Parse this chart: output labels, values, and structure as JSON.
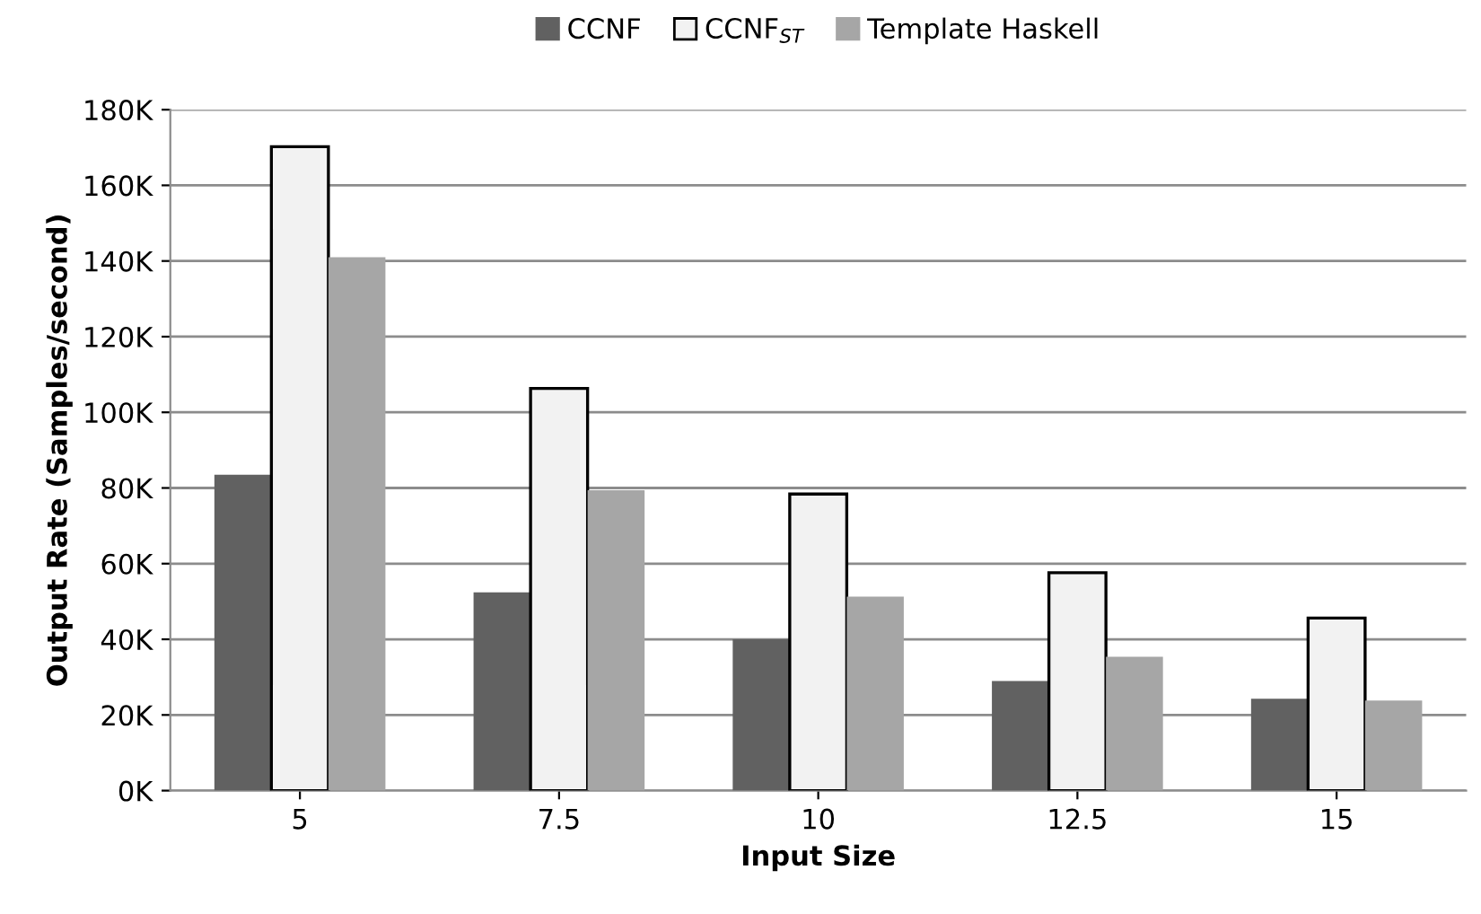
{
  "chart_data": {
    "type": "bar",
    "xlabel": "Input Size",
    "ylabel": "Output Rate (Samples/second)",
    "categories": [
      "5",
      "7.5",
      "10",
      "12.5",
      "15"
    ],
    "series": [
      {
        "name": "CCNF",
        "color": "#616161",
        "values": [
          83500,
          52400,
          40000,
          29000,
          24300
        ]
      },
      {
        "name": "CCNF$_{ST}$",
        "color": "#f2f2f2",
        "values": [
          170200,
          106300,
          78400,
          57600,
          45600
        ]
      },
      {
        "name": "Template Haskell",
        "color": "#a6a6a6",
        "values": [
          141000,
          79400,
          51300,
          35400,
          23800
        ]
      }
    ],
    "ylim": [
      0,
      180000
    ],
    "yticks": [
      {
        "value": 0,
        "label": "0K"
      },
      {
        "value": 20000,
        "label": "20K"
      },
      {
        "value": 40000,
        "label": "40K"
      },
      {
        "value": 60000,
        "label": "60K"
      },
      {
        "value": 80000,
        "label": "80K"
      },
      {
        "value": 100000,
        "label": "100K"
      },
      {
        "value": 120000,
        "label": "120K"
      },
      {
        "value": 140000,
        "label": "140K"
      },
      {
        "value": 160000,
        "label": "160K"
      },
      {
        "value": 180000,
        "label": "180K"
      }
    ],
    "grid": "y",
    "legend": "top"
  }
}
